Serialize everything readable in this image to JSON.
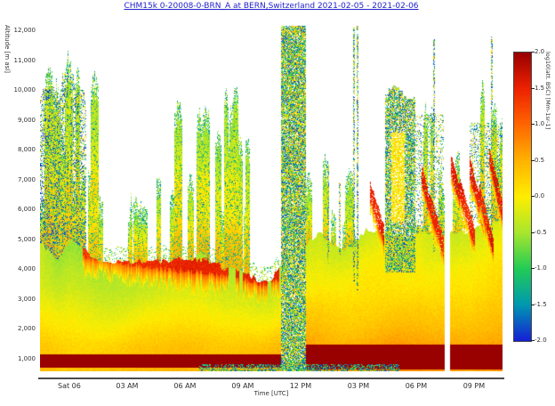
{
  "title": {
    "text": "CHM15k 0-20008-0-BRN_A at BERN,Switzerland 2021-02-05 - 2021-02-06",
    "color": "#2222cc"
  },
  "chart_data": {
    "type": "heatmap",
    "title": "CHM15k 0-20008-0-BRN_A at BERN,Switzerland 2021-02-05 - 2021-02-06",
    "xlabel": "Time [UTC]",
    "ylabel": "Altitude [m asl]",
    "colorbar_label": "log10(att. BSC) [Mm-1sr-1]",
    "x_range_hours": [
      0,
      24
    ],
    "x_ticks": [
      {
        "label": "Sat 06",
        "hour": 1.52
      },
      {
        "label": "03 AM",
        "hour": 4.52
      },
      {
        "label": "06 AM",
        "hour": 7.52
      },
      {
        "label": "09 AM",
        "hour": 10.52
      },
      {
        "label": "12 PM",
        "hour": 13.52
      },
      {
        "label": "03 PM",
        "hour": 16.52
      },
      {
        "label": "06 PM",
        "hour": 19.52
      },
      {
        "label": "09 PM",
        "hour": 22.52
      }
    ],
    "y_range_m": [
      580,
      12190
    ],
    "y_ticks": [
      {
        "label": "12,000",
        "m": 12000
      },
      {
        "label": "11,000",
        "m": 11000
      },
      {
        "label": "10,000",
        "m": 10000
      },
      {
        "label": "9,000",
        "m": 9000
      },
      {
        "label": "8,000",
        "m": 8000
      },
      {
        "label": "7,000",
        "m": 7000
      },
      {
        "label": "6,000",
        "m": 6000
      },
      {
        "label": "5,000",
        "m": 5000
      },
      {
        "label": "4,000",
        "m": 4000
      },
      {
        "label": "3,000",
        "m": 3000
      },
      {
        "label": "2,000",
        "m": 2000
      },
      {
        "label": "1,000",
        "m": 1000
      }
    ],
    "colorbar_range": [
      -2,
      2
    ],
    "colorbar_ticks": [
      "2.0",
      "1.5",
      "1.0",
      "0.5",
      "0.0",
      "-0.5",
      "-1.0",
      "-1.5",
      "-2.0"
    ],
    "colormap_stops": [
      [
        -2.0,
        "#1520d6"
      ],
      [
        -1.5,
        "#0099b0"
      ],
      [
        -1.0,
        "#22cc55"
      ],
      [
        -0.5,
        "#a8e62e"
      ],
      [
        0.0,
        "#ffee00"
      ],
      [
        0.5,
        "#ffb300"
      ],
      [
        1.0,
        "#ff6600"
      ],
      [
        1.5,
        "#ee2200"
      ],
      [
        2.0,
        "#990000"
      ]
    ],
    "features": [
      {
        "id": "boundary_layer",
        "type": "layer",
        "top_profile": [
          [
            0,
            5100
          ],
          [
            0.8,
            4500
          ],
          [
            1.6,
            4900
          ],
          [
            2.4,
            4500
          ],
          [
            3.2,
            4350
          ],
          [
            4.5,
            4300
          ],
          [
            6,
            4250
          ],
          [
            7.5,
            4300
          ],
          [
            8.5,
            4500
          ],
          [
            9.5,
            4150
          ],
          [
            10.5,
            3950
          ],
          [
            11.3,
            3750
          ],
          [
            11.9,
            3650
          ],
          [
            12.6,
            4100
          ],
          [
            13.8,
            4700
          ],
          [
            14.6,
            5100
          ],
          [
            15.4,
            4800
          ],
          [
            16.2,
            5000
          ],
          [
            17,
            5500
          ],
          [
            18,
            5300
          ],
          [
            19,
            5100
          ],
          [
            19.8,
            5500
          ],
          [
            20.6,
            5050
          ],
          [
            21.6,
            5150
          ],
          [
            22.4,
            5450
          ],
          [
            23.2,
            5650
          ],
          [
            24,
            5750
          ]
        ],
        "left_profile": {
          "surface_v": 0.45,
          "low_v": 0.3,
          "top_v": -0.55
        },
        "right_profile": {
          "surface_v": 0.7,
          "top_v": -0.35
        }
      },
      {
        "id": "surface_orange_band_left",
        "type": "band",
        "t": [
          0,
          12.5
        ],
        "alt": [
          700,
          1150
        ],
        "v": 0.72
      },
      {
        "id": "surface_orange_band_right",
        "type": "band",
        "t": [
          12.5,
          24
        ],
        "alt": [
          650,
          1500
        ],
        "v": 0.78
      },
      {
        "id": "elevated_red_band",
        "type": "descending_band",
        "t": [
          2.2,
          12.4
        ],
        "center_profile": [
          [
            2.2,
            4650
          ],
          [
            4,
            4450
          ],
          [
            6,
            4250
          ],
          [
            8,
            4150
          ],
          [
            9.5,
            4000
          ],
          [
            10.5,
            3900
          ],
          [
            11.5,
            3700
          ],
          [
            12.4,
            3900
          ]
        ],
        "thickness_m": 450,
        "v": 1.6
      },
      {
        "id": "noon_cloud_column",
        "type": "speckle_column",
        "t": [
          12.55,
          13.75
        ],
        "alt": [
          580,
          12150
        ],
        "density": 0.88
      },
      {
        "id": "left_cloud_canopy",
        "type": "canopy",
        "t": [
          0,
          2.35
        ],
        "alt_max": 11400,
        "density": 0.45
      },
      {
        "id": "evening_cloud_block",
        "type": "speckle_region",
        "t": [
          17.95,
          19.4
        ],
        "alt": [
          3900,
          10300
        ],
        "density": 0.78,
        "core": {
          "t": [
            18.2,
            18.9
          ],
          "alt": [
            5600,
            8600
          ],
          "v": [
            -0.2,
            0.3
          ]
        }
      },
      {
        "id": "evening_speckle_1",
        "type": "speckle_region",
        "t": [
          19.5,
          20.9
        ],
        "alt": [
          5200,
          9200
        ],
        "density": 0.28
      },
      {
        "id": "evening_speckle_2",
        "type": "speckle_region",
        "t": [
          22.3,
          24
        ],
        "alt": [
          5600,
          8900
        ],
        "density": 0.32
      },
      {
        "id": "tall_thin_columns",
        "type": "speckle_lines",
        "density": 0.6,
        "lines": [
          [
            16.25,
            3600,
            12150
          ],
          [
            16.45,
            3300,
            12150
          ],
          [
            20.42,
            4600,
            11700
          ],
          [
            14.9,
            4200,
            7600
          ],
          [
            15.5,
            4500,
            6900
          ],
          [
            23.4,
            4800,
            11800
          ]
        ]
      },
      {
        "id": "bottom_dark_speckle",
        "type": "band_speckle",
        "t": [
          8.3,
          18.6
        ],
        "alt": [
          580,
          800
        ],
        "density": 0.5,
        "v": [
          -2,
          -0.5
        ]
      },
      {
        "id": "evening_red_streaks",
        "type": "streaks",
        "v": 1.45,
        "thickness_m": 260,
        "paths": [
          [
            17.1,
            6600,
            17.8,
            5200
          ],
          [
            19.8,
            7200,
            20.5,
            5400
          ],
          [
            20.2,
            6200,
            20.9,
            4800
          ],
          [
            21.3,
            7500,
            22.0,
            5900
          ],
          [
            21.8,
            6700,
            22.5,
            5100
          ],
          [
            22.3,
            7400,
            23.0,
            5700
          ],
          [
            22.8,
            6500,
            23.5,
            4800
          ],
          [
            23.3,
            7800,
            24.0,
            5900
          ]
        ]
      },
      {
        "id": "spike_zones",
        "type": "spikes",
        "zones": [
          {
            "t": [
              0,
              3.3
            ],
            "count": 26,
            "top": [
              5500,
              11300
            ],
            "w": [
              1,
              4
            ],
            "red_core": false
          },
          {
            "t": [
              3.4,
              7.1
            ],
            "count": 7,
            "top": [
              5200,
              8200
            ],
            "w": [
              1,
              3
            ],
            "red_core": false
          },
          {
            "t": [
              7.1,
              10.9
            ],
            "count": 16,
            "top": [
              5200,
              9800
            ],
            "w": [
              2,
              5
            ],
            "red_core": true
          },
          {
            "t": [
              13.6,
              16.3
            ],
            "count": 12,
            "top": [
              4800,
              7600
            ],
            "w": [
              1,
              3
            ],
            "red_core": false
          },
          {
            "t": [
              19.4,
              20.9
            ],
            "count": 6,
            "top": [
              5500,
              9000
            ],
            "w": [
              1,
              3
            ],
            "red_core": false
          },
          {
            "t": [
              21.4,
              24
            ],
            "count": 10,
            "top": [
              5200,
              11800
            ],
            "w": [
              1,
              3
            ],
            "red_core": false
          }
        ]
      },
      {
        "id": "data_gap",
        "type": "gap",
        "t": [
          21.02,
          21.22
        ],
        "alt": [
          580,
          12190
        ]
      }
    ]
  }
}
